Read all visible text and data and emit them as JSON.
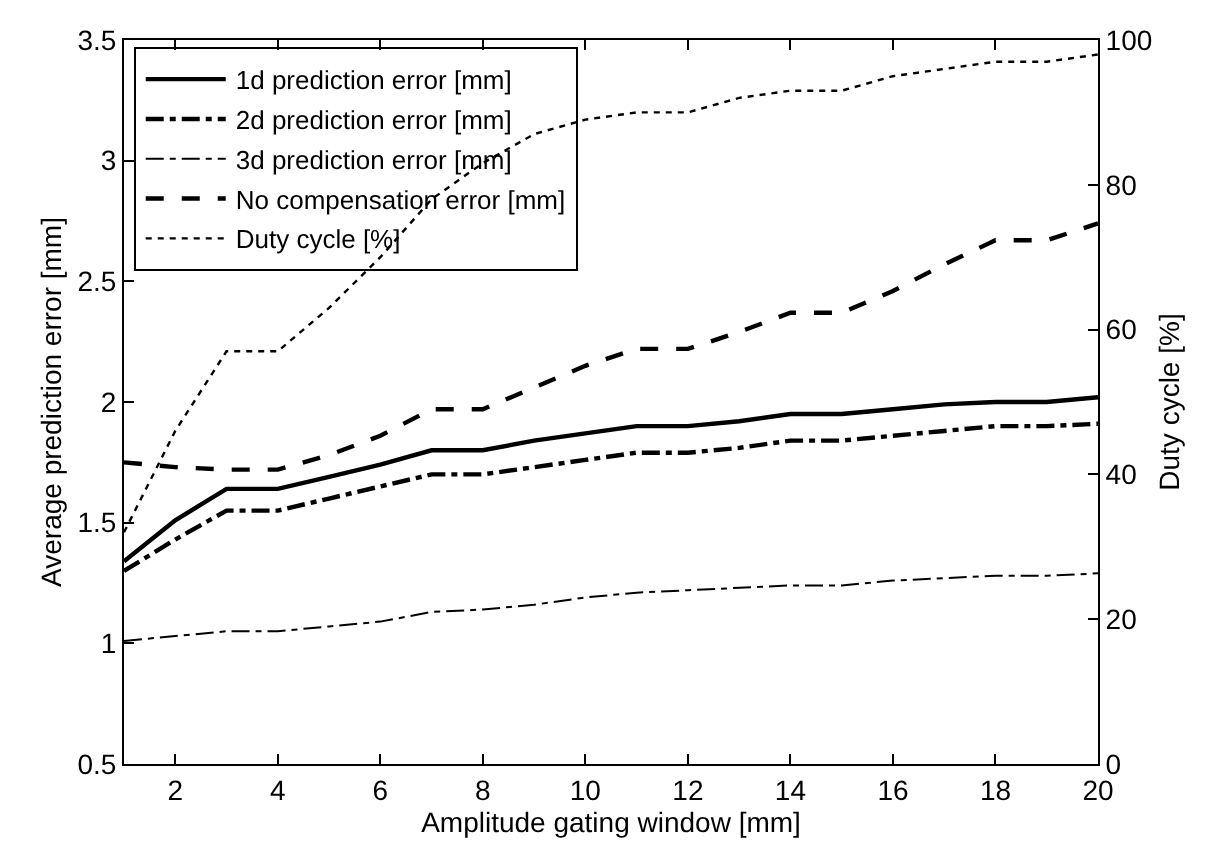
{
  "chart_data": {
    "type": "line",
    "xlabel": "Amplitude gating window [mm]",
    "ylabel": "Average prediction error [mm]",
    "y2label": "Duty cycle [%]",
    "x": [
      1,
      2,
      3,
      4,
      5,
      6,
      7,
      8,
      9,
      10,
      11,
      12,
      13,
      14,
      15,
      16,
      17,
      18,
      19,
      20
    ],
    "series": [
      {
        "name": "1d prediction error [mm]",
        "color": "#000000",
        "line_style": "solid",
        "values": [
          1.34,
          1.51,
          1.64,
          1.64,
          1.69,
          1.74,
          1.8,
          1.8,
          1.84,
          1.87,
          1.9,
          1.9,
          1.92,
          1.95,
          1.95,
          1.97,
          1.99,
          2.0,
          2.0,
          2.02
        ]
      },
      {
        "name": "2d prediction error [mm]",
        "color": "#000000",
        "line_style": "dashdot",
        "values": [
          1.3,
          1.43,
          1.55,
          1.55,
          1.6,
          1.65,
          1.7,
          1.7,
          1.73,
          1.76,
          1.79,
          1.79,
          1.81,
          1.84,
          1.84,
          1.86,
          1.88,
          1.9,
          1.9,
          1.91
        ]
      },
      {
        "name": "3d prediction error [mm]",
        "color": "#000000",
        "line_style": "dashdot",
        "values": [
          1.01,
          1.03,
          1.05,
          1.05,
          1.07,
          1.09,
          1.13,
          1.14,
          1.16,
          1.19,
          1.21,
          1.22,
          1.23,
          1.24,
          1.24,
          1.26,
          1.27,
          1.28,
          1.28,
          1.29
        ]
      },
      {
        "name": "No compensation error [mm]",
        "color": "#000000",
        "line_style": "dashed",
        "values": [
          1.75,
          1.73,
          1.72,
          1.72,
          1.78,
          1.86,
          1.97,
          1.97,
          2.06,
          2.15,
          2.22,
          2.22,
          2.29,
          2.37,
          2.37,
          2.46,
          2.57,
          2.67,
          2.67,
          2.74
        ]
      },
      {
        "name": "Duty cycle [%]",
        "color": "#000000",
        "line_style": "dotted",
        "axis": "y2",
        "values": [
          32,
          46,
          57,
          57,
          63,
          70,
          78,
          83,
          87,
          89,
          90,
          90,
          92,
          93,
          93,
          95,
          96,
          97,
          97,
          98
        ]
      }
    ],
    "xlim": [
      1,
      20
    ],
    "xticks": [
      2,
      4,
      6,
      8,
      10,
      12,
      14,
      16,
      18,
      20
    ],
    "ylim": [
      0.5,
      3.5
    ],
    "yticks": [
      0.5,
      1,
      1.5,
      2,
      2.5,
      3,
      3.5
    ],
    "y2lim": [
      0,
      100
    ],
    "y2ticks": [
      0,
      20,
      40,
      60,
      80,
      100
    ],
    "legend": "top left",
    "marker": "none"
  }
}
